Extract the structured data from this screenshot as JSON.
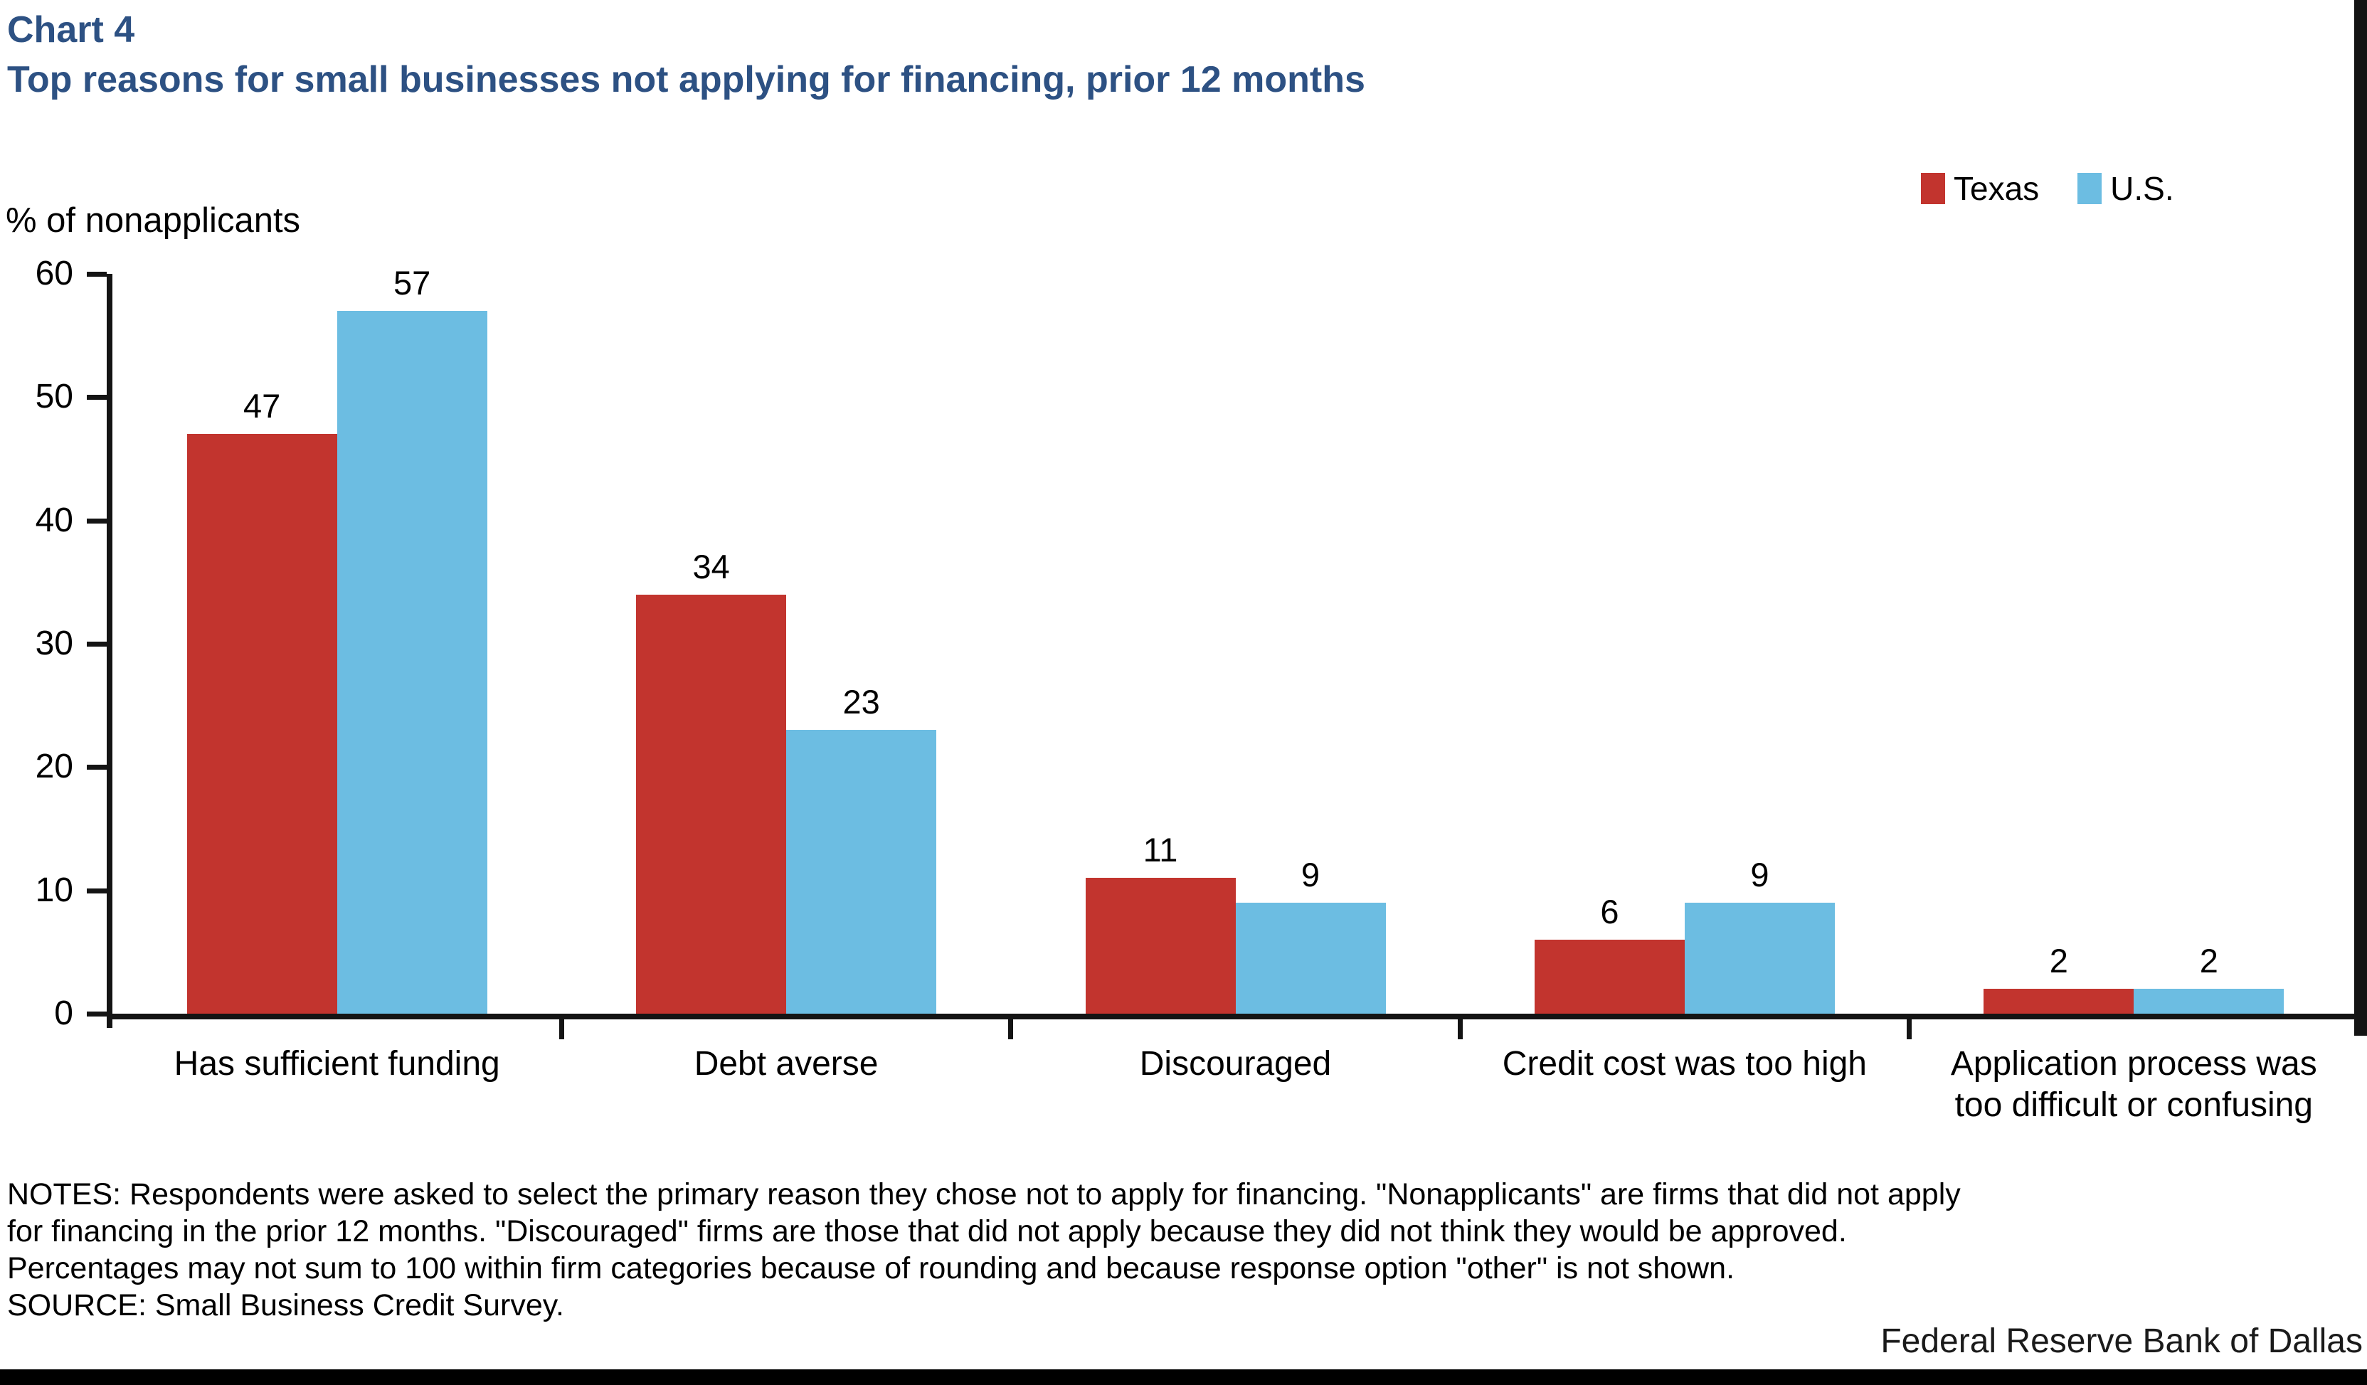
{
  "header": {
    "chart_number": "Chart 4",
    "title": "Top reasons for small businesses not applying for financing, prior 12 months"
  },
  "chart_data": {
    "type": "bar",
    "title": "Top reasons for small businesses not applying for financing, prior 12 months",
    "y_axis_title": "% of nonapplicants",
    "categories": [
      "Has sufficient funding",
      "Debt averse",
      "Discouraged",
      "Credit cost was too high",
      "Application process was\ntoo difficult or confusing"
    ],
    "series": [
      {
        "name": "Texas",
        "color": "#c2342e",
        "values": [
          47,
          34,
          11,
          6,
          2
        ]
      },
      {
        "name": "U.S.",
        "color": "#6cbde2",
        "values": [
          57,
          23,
          9,
          9,
          2
        ]
      }
    ],
    "ylim": [
      0,
      60
    ],
    "yticks": [
      0,
      10,
      20,
      30,
      40,
      50,
      60
    ],
    "grid": false,
    "legend_position": "top-right",
    "show_value_labels": true
  },
  "notes": {
    "lines": [
      "NOTES: Respondents were asked to select the primary reason they chose not to apply for financing. \"Nonapplicants\" are firms that did not apply",
      "for financing in the prior 12 months. \"Discouraged\" firms are those that did not apply because they did not think they would be approved.",
      "Percentages may not sum to 100 within firm categories because of rounding and because response option \"other\" is not shown."
    ],
    "source": "SOURCE: Small Business Credit Survey."
  },
  "footer": {
    "brand": "Federal Reserve Bank of Dallas"
  },
  "colors": {
    "title": "#2d5183",
    "texas": "#c2342e",
    "us": "#6cbde2",
    "axis": "#141414"
  }
}
